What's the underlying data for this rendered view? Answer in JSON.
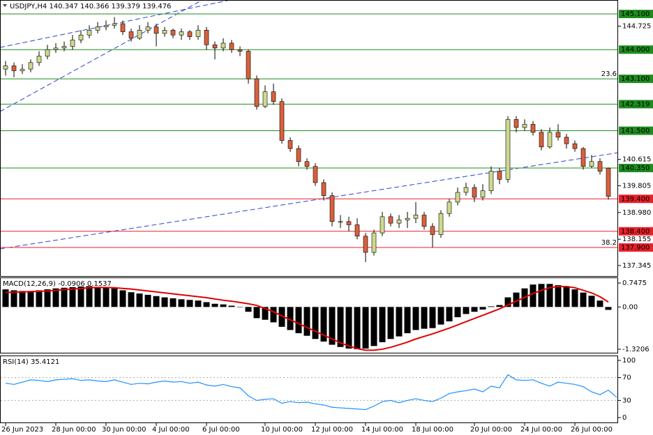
{
  "chart_data": [
    {
      "type": "candlestick",
      "title": "USDJPY,H4  140.347 140.366 139.379 139.476",
      "categories": [
        "26 Jun 2023",
        null,
        null,
        null,
        null,
        null,
        "28 Jun 00:00",
        null,
        null,
        null,
        null,
        null,
        "30 Jun 00:00",
        null,
        null,
        null,
        null,
        null,
        "4 Jul 00:00",
        null,
        null,
        null,
        null,
        null,
        "6 Jul 00:00",
        null,
        null,
        null,
        null,
        null,
        null,
        "10 Jul 00:00",
        null,
        null,
        null,
        null,
        null,
        "12 Jul 00:00",
        null,
        null,
        null,
        null,
        null,
        "14 Jul 00:00",
        null,
        null,
        null,
        null,
        null,
        "18 Jul 00:00",
        null,
        null,
        null,
        null,
        null,
        null,
        "20 Jul 00:00",
        null,
        null,
        null,
        null,
        null,
        "24 Jul 00:00",
        null,
        null,
        null,
        null,
        null,
        "26 Jul 00:00",
        null,
        null,
        null,
        null
      ],
      "open": [
        143.4,
        143.5,
        143.35,
        143.4,
        143.6,
        143.8,
        144.0,
        144.05,
        144.1,
        144.3,
        144.45,
        144.6,
        144.7,
        144.75,
        144.8,
        144.55,
        144.35,
        144.6,
        144.7,
        144.5,
        144.6,
        144.45,
        144.55,
        144.4,
        144.6,
        144.15,
        144.05,
        144.2,
        144.0,
        143.95,
        143.1,
        142.25,
        142.7,
        142.4,
        141.2,
        140.95,
        140.55,
        140.4,
        139.9,
        139.5,
        138.7,
        138.7,
        138.6,
        138.25,
        137.75,
        138.35,
        138.85,
        138.65,
        138.75,
        138.8,
        138.9,
        138.55,
        138.3,
        138.95,
        139.3,
        139.6,
        139.75,
        139.45,
        139.65,
        140.25,
        140.0,
        141.85,
        141.6,
        141.7,
        141.45,
        141.0,
        141.45,
        141.3,
        141.1,
        140.95,
        140.4,
        140.55,
        140.347
      ],
      "high": [
        143.65,
        143.6,
        143.55,
        143.7,
        143.95,
        144.15,
        144.2,
        144.25,
        144.45,
        144.6,
        144.75,
        144.85,
        144.9,
        145.0,
        144.9,
        144.65,
        144.75,
        144.85,
        144.8,
        144.7,
        144.65,
        144.65,
        144.6,
        144.75,
        144.7,
        144.25,
        144.35,
        144.3,
        144.1,
        144.0,
        143.2,
        142.9,
        142.95,
        142.5,
        141.3,
        141.05,
        140.65,
        140.5,
        140.0,
        139.6,
        138.9,
        138.85,
        138.8,
        138.35,
        138.45,
        139.0,
        138.95,
        138.9,
        139.0,
        139.3,
        139.0,
        138.65,
        139.05,
        139.4,
        139.75,
        139.9,
        139.85,
        139.85,
        140.4,
        140.35,
        141.95,
        141.95,
        141.85,
        141.8,
        141.55,
        141.6,
        141.7,
        141.4,
        141.2,
        141.0,
        140.75,
        140.65,
        140.366
      ],
      "low": [
        143.2,
        143.15,
        143.25,
        143.3,
        143.5,
        143.7,
        143.9,
        143.95,
        144.0,
        144.2,
        144.35,
        144.5,
        144.6,
        144.65,
        144.45,
        144.25,
        144.3,
        144.5,
        144.1,
        144.4,
        144.35,
        144.3,
        144.3,
        144.3,
        144.0,
        143.7,
        143.95,
        143.9,
        143.8,
        142.95,
        142.15,
        142.2,
        142.3,
        141.1,
        140.85,
        140.4,
        140.3,
        139.8,
        139.35,
        138.55,
        138.5,
        138.4,
        138.15,
        137.45,
        137.65,
        138.25,
        138.55,
        138.5,
        138.5,
        138.65,
        138.45,
        137.9,
        138.2,
        138.85,
        139.2,
        139.5,
        139.3,
        139.35,
        139.55,
        139.85,
        139.9,
        141.45,
        141.5,
        141.35,
        140.9,
        140.95,
        141.2,
        140.95,
        140.85,
        140.3,
        140.35,
        140.15,
        139.379
      ],
      "close": [
        143.5,
        143.35,
        143.4,
        143.6,
        143.8,
        144.0,
        144.05,
        144.1,
        144.3,
        144.45,
        144.6,
        144.7,
        144.75,
        144.8,
        144.55,
        144.35,
        144.6,
        144.7,
        144.5,
        144.6,
        144.45,
        144.55,
        144.4,
        144.6,
        144.15,
        144.05,
        144.2,
        144.0,
        143.95,
        143.1,
        142.25,
        142.7,
        142.4,
        141.2,
        140.95,
        140.55,
        140.4,
        139.9,
        139.5,
        138.7,
        138.7,
        138.6,
        138.25,
        137.75,
        138.35,
        138.85,
        138.65,
        138.75,
        138.8,
        138.9,
        138.55,
        138.3,
        138.95,
        139.3,
        139.6,
        139.75,
        139.45,
        139.65,
        140.25,
        140.0,
        141.85,
        141.6,
        141.7,
        141.45,
        141.0,
        141.45,
        141.3,
        141.1,
        140.95,
        140.4,
        140.55,
        140.25,
        139.476
      ],
      "up_color": "#cdd98f",
      "down_color": "#d9603c",
      "ylim": [
        137.02,
        145.53
      ],
      "yticks": [
        144.725,
        140.615,
        139.805,
        {
          "value": 138.98,
          "label": "138.980"
        },
        138.155,
        137.345
      ],
      "levels": [
        {
          "value": 145.1,
          "label": "145.100",
          "color": "#1e8c1e"
        },
        {
          "value": 144.0,
          "label": "144.000",
          "color": "#1e8c1e"
        },
        {
          "value": 143.1,
          "label": "143.100",
          "color": "#1e8c1e",
          "note": "23.6",
          "note_color": "#000080"
        },
        {
          "value": 142.319,
          "label": "142.319",
          "color": "#1e8c1e"
        },
        {
          "value": 141.5,
          "label": "141.500",
          "color": "#1e8c1e"
        },
        {
          "value": 140.35,
          "label": "140.350",
          "color": "#1e8c1e"
        },
        {
          "value": 139.4,
          "label": "139.400",
          "color": "#e8202a"
        },
        {
          "value": 138.4,
          "label": "138.400",
          "color": "#e8202a"
        },
        {
          "value": 137.9,
          "label": "137.900",
          "color": "#e8202a",
          "note": "38.2",
          "note_color": "#000080"
        }
      ]
    },
    {
      "type": "bar",
      "title": "MACD(12,26,9) -0.0906 0.1537",
      "color": "#000000",
      "values": [
        0.55,
        0.52,
        0.5,
        0.5,
        0.52,
        0.55,
        0.58,
        0.6,
        0.62,
        0.64,
        0.65,
        0.63,
        0.6,
        0.58,
        0.52,
        0.46,
        0.42,
        0.38,
        0.34,
        0.3,
        0.27,
        0.24,
        0.22,
        0.2,
        0.15,
        0.1,
        0.08,
        0.04,
        0.0,
        -0.15,
        -0.35,
        -0.4,
        -0.48,
        -0.62,
        -0.72,
        -0.82,
        -0.9,
        -1.0,
        -1.08,
        -1.18,
        -1.25,
        -1.3,
        -1.32,
        -1.3,
        -1.22,
        -1.1,
        -1.0,
        -0.92,
        -0.82,
        -0.72,
        -0.68,
        -0.66,
        -0.55,
        -0.45,
        -0.32,
        -0.22,
        -0.15,
        -0.08,
        0.02,
        0.06,
        0.3,
        0.45,
        0.58,
        0.7,
        0.72,
        0.72,
        0.68,
        0.62,
        0.55,
        0.45,
        0.35,
        0.2,
        -0.0906
      ],
      "signal": {
        "color": "#e00000",
        "values": [
          0.45,
          0.46,
          0.47,
          0.48,
          0.49,
          0.5,
          0.52,
          0.54,
          0.56,
          0.58,
          0.6,
          0.61,
          0.61,
          0.6,
          0.58,
          0.56,
          0.53,
          0.5,
          0.47,
          0.44,
          0.41,
          0.38,
          0.35,
          0.32,
          0.29,
          0.25,
          0.21,
          0.18,
          0.14,
          0.1,
          0.05,
          -0.05,
          -0.15,
          -0.28,
          -0.4,
          -0.52,
          -0.64,
          -0.76,
          -0.88,
          -1.0,
          -1.12,
          -1.22,
          -1.3,
          -1.35,
          -1.35,
          -1.32,
          -1.26,
          -1.18,
          -1.1,
          -1.0,
          -0.92,
          -0.84,
          -0.75,
          -0.66,
          -0.56,
          -0.46,
          -0.36,
          -0.26,
          -0.16,
          -0.06,
          0.06,
          0.18,
          0.3,
          0.42,
          0.52,
          0.6,
          0.64,
          0.64,
          0.6,
          0.52,
          0.44,
          0.32,
          0.1537
        ]
      },
      "ylim": [
        -1.43,
        0.922
      ],
      "yticks": [
        0.7475,
        {
          "value": 0,
          "label": "0.00"
        },
        -1.3206
      ]
    },
    {
      "type": "line",
      "title": "RSI(14) 35.4121",
      "color": "#1e90ff",
      "values": [
        60,
        58,
        62,
        66,
        65,
        63,
        66,
        67,
        68,
        65,
        66,
        64,
        63,
        66,
        62,
        58,
        60,
        59,
        62,
        64,
        62,
        63,
        60,
        62,
        57,
        55,
        58,
        54,
        52,
        38,
        30,
        32,
        33,
        25,
        28,
        26,
        27,
        24,
        22,
        18,
        17,
        16,
        15,
        14,
        20,
        28,
        30,
        26,
        30,
        33,
        30,
        28,
        34,
        42,
        45,
        47,
        50,
        45,
        55,
        52,
        75,
        66,
        65,
        66,
        60,
        55,
        62,
        60,
        58,
        54,
        45,
        40,
        48,
        35.4121
      ],
      "ylim": [
        -8.5,
        108.5
      ],
      "yticks": [
        100,
        70,
        30,
        0
      ],
      "guides": [
        70,
        30
      ]
    }
  ]
}
